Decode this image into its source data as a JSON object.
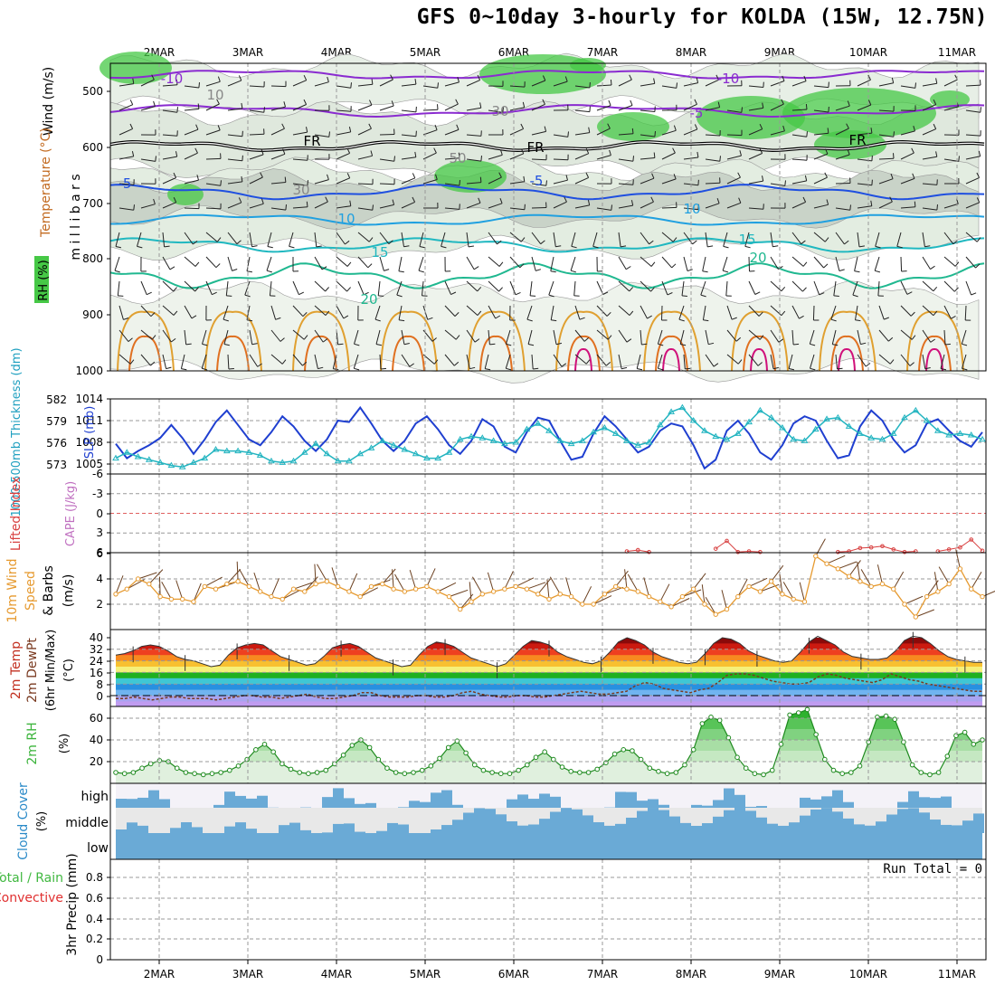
{
  "title": "GFS 0~10day 3-hourly for KOLDA (15W, 12.75N)",
  "date_labels": [
    "2MAR",
    "3MAR",
    "4MAR",
    "5MAR",
    "6MAR",
    "7MAR",
    "8MAR",
    "9MAR",
    "10MAR",
    "11MAR"
  ],
  "colors": {
    "rh_green": "#46c846",
    "slp": "#1f3fd0",
    "thickness": "#22b4c0",
    "lifted_index": "#d84040",
    "cape": "#c070c0",
    "wind_speed": "#e69a30",
    "barb": "#6b4020",
    "rh2m": "#3cb43c",
    "cloud": "#6aaad6",
    "cloud_bg": "#e8e8e8"
  },
  "chart_data": [
    {
      "id": "upper-air",
      "type": "heatmap",
      "side_labels": [
        "Wind (m/s)",
        "Temperature (°C)",
        "RH (%)",
        "m i l l i b a r s"
      ],
      "y_ticks": [
        "500",
        "600",
        "700",
        "800",
        "900",
        "1000"
      ],
      "contour_labels": [
        "-10",
        "-10",
        "-5",
        "FR",
        "FR",
        "FR",
        "-5",
        "-5",
        "10",
        "10",
        "15",
        "15",
        "20",
        "20",
        "50",
        "30",
        "30",
        "10"
      ]
    },
    {
      "id": "slp-thickness",
      "type": "line",
      "side_labels": [
        "1000-500mb Thickness (dm)",
        "SLP (mb)"
      ],
      "y_ticks_left": [
        "582",
        "579",
        "576",
        "573"
      ],
      "y_ticks_right": [
        "1014",
        "1011",
        "1008",
        "1005"
      ],
      "series": [
        {
          "name": "SLP (mb)",
          "values": [
            1007.8,
            1005.8,
            1006.8,
            1007.6,
            1008.6,
            1010.4,
            1008.6,
            1006.4,
            1008.4,
            1010.8,
            1012.4,
            1010.4,
            1008.4,
            1007.6,
            1009.4,
            1011.6,
            1010.2,
            1008.2,
            1006.8,
            1008.4,
            1011.0,
            1010.8,
            1012.8,
            1010.6,
            1008.2,
            1006.8,
            1008.2,
            1010.6,
            1011.6,
            1009.8,
            1007.6,
            1006.4,
            1008.2,
            1011.2,
            1010.2,
            1007.4,
            1006.6,
            1009.4,
            1011.4,
            1011.0,
            1008.2,
            1005.6,
            1006.0,
            1009.2,
            1011.6,
            1010.2,
            1008.4,
            1006.6,
            1007.4,
            1009.6,
            1010.6,
            1010.2,
            1007.6,
            1004.4,
            1005.6,
            1009.6,
            1011.0,
            1009.2,
            1006.6,
            1005.6,
            1007.6,
            1010.6,
            1011.6,
            1011.0,
            1008.2,
            1005.8,
            1006.2,
            1010.2,
            1012.4,
            1011.0,
            1008.4,
            1006.6,
            1007.6,
            1010.6,
            1011.2,
            1009.6,
            1008.2,
            1007.4,
            1009.4
          ]
        },
        {
          "name": "1000-500mb Thickness (dm)",
          "values": [
            573.8,
            574.6,
            574.0,
            573.6,
            573.2,
            572.8,
            572.6,
            573.2,
            573.8,
            575.0,
            574.8,
            574.8,
            574.6,
            574.2,
            573.4,
            573.2,
            573.4,
            574.6,
            575.8,
            574.4,
            573.4,
            573.4,
            574.4,
            575.2,
            576.2,
            575.6,
            575.0,
            574.4,
            573.8,
            573.8,
            574.6,
            576.4,
            576.8,
            576.6,
            576.2,
            575.8,
            576.0,
            577.8,
            578.6,
            577.6,
            576.2,
            575.8,
            576.2,
            577.4,
            578.0,
            577.2,
            576.2,
            575.6,
            576.0,
            578.4,
            580.2,
            580.8,
            579.0,
            577.6,
            576.8,
            576.4,
            577.2,
            578.8,
            580.4,
            579.4,
            578.0,
            576.4,
            576.2,
            577.8,
            579.2,
            579.4,
            578.2,
            577.2,
            576.6,
            576.4,
            577.2,
            579.4,
            580.4,
            579.0,
            577.6,
            577.0,
            577.2,
            577.0,
            576.4
          ]
        }
      ]
    },
    {
      "id": "lifted-index-cape",
      "type": "line",
      "side_labels": [
        "Lifted Index",
        "CAPE (J/kg)"
      ],
      "y_ticks": [
        "-6",
        "-3",
        "0",
        "3",
        "6"
      ],
      "series": [
        {
          "name": "Lifted Index",
          "values": [
            null,
            null,
            null,
            null,
            null,
            null,
            null,
            null,
            null,
            null,
            null,
            null,
            null,
            null,
            null,
            null,
            null,
            null,
            null,
            null,
            null,
            null,
            null,
            null,
            null,
            null,
            null,
            null,
            null,
            null,
            null,
            null,
            null,
            null,
            null,
            null,
            null,
            null,
            null,
            null,
            null,
            null,
            null,
            null,
            null,
            null,
            5.8,
            5.6,
            5.9,
            null,
            null,
            null,
            null,
            null,
            5.4,
            4.2,
            5.9,
            5.8,
            5.9,
            null,
            null,
            null,
            null,
            null,
            null,
            5.9,
            5.8,
            5.3,
            5.2,
            5.0,
            5.5,
            5.9,
            5.8,
            null,
            5.8,
            5.5,
            5.2,
            4.0,
            5.7
          ]
        }
      ]
    },
    {
      "id": "wind10m",
      "type": "line",
      "side_labels": [
        "10m Wind",
        "Speed",
        "& Barbs",
        "(m/s)"
      ],
      "y_ticks": [
        "6",
        "4",
        "2"
      ],
      "series": [
        {
          "name": "Speed",
          "values": [
            2.8,
            3.2,
            4.0,
            3.6,
            2.6,
            2.4,
            2.4,
            2.2,
            3.4,
            3.2,
            3.6,
            3.8,
            3.4,
            3.0,
            2.6,
            2.4,
            3.2,
            3.0,
            3.6,
            3.8,
            3.4,
            3.0,
            2.6,
            3.4,
            3.6,
            3.2,
            3.0,
            3.2,
            3.4,
            3.0,
            2.6,
            1.6,
            2.2,
            2.8,
            3.0,
            3.2,
            3.4,
            3.2,
            2.8,
            2.4,
            2.8,
            2.6,
            2.0,
            2.0,
            2.8,
            3.4,
            3.2,
            3.0,
            2.6,
            2.2,
            1.8,
            2.6,
            3.2,
            2.0,
            1.2,
            1.6,
            2.6,
            3.4,
            3.0,
            3.8,
            2.8,
            2.4,
            2.2,
            5.8,
            5.2,
            4.8,
            4.2,
            3.8,
            3.4,
            3.6,
            3.2,
            2.0,
            1.0,
            2.6,
            3.0,
            3.6,
            4.8,
            3.2,
            2.6
          ]
        }
      ]
    },
    {
      "id": "temp2m",
      "type": "area",
      "side_labels": [
        "2m Temp",
        "2m DewPt",
        "(6hr Min/Max)",
        "(°C)"
      ],
      "y_ticks": [
        "40",
        "32",
        "24",
        "16",
        "8",
        "0"
      ],
      "series": [
        {
          "name": "2m Temp",
          "values": [
            28,
            29,
            31,
            34,
            35,
            34,
            31,
            27,
            25,
            24,
            22,
            20,
            21,
            28,
            33,
            35,
            36,
            35,
            31,
            27,
            25,
            23,
            21,
            22,
            27,
            33,
            35,
            36,
            34,
            30,
            26,
            24,
            22,
            20,
            21,
            28,
            34,
            37,
            36,
            34,
            30,
            26,
            24,
            22,
            20,
            22,
            28,
            34,
            38,
            37,
            35,
            30,
            27,
            25,
            23,
            22,
            24,
            30,
            37,
            40,
            38,
            35,
            30,
            27,
            25,
            23,
            22,
            23,
            29,
            36,
            40,
            39,
            36,
            31,
            28,
            26,
            24,
            23,
            24,
            30,
            37,
            41,
            38,
            35,
            30,
            27,
            26,
            25,
            25,
            26,
            31,
            38,
            41,
            40,
            36,
            31,
            27,
            25,
            24,
            23,
            23
          ]
        },
        {
          "name": "2m DewPt",
          "values": [
            -2,
            -2,
            -1,
            -2,
            -3,
            -2,
            -1,
            -1,
            -2,
            -2,
            -2,
            -3,
            -2,
            -1,
            0,
            0,
            -1,
            -1,
            -2,
            -1,
            0,
            1,
            -1,
            -2,
            -2,
            -1,
            0,
            2,
            2,
            0,
            -1,
            -1,
            -1,
            0,
            0,
            -1,
            -1,
            0,
            2,
            3,
            1,
            0,
            -1,
            -1,
            0,
            0,
            -1,
            -1,
            0,
            1,
            2,
            3,
            2,
            1,
            1,
            2,
            3,
            7,
            9,
            8,
            5,
            4,
            3,
            2,
            4,
            5,
            9,
            14,
            15,
            15,
            14,
            12,
            10,
            9,
            8,
            8,
            9,
            13,
            15,
            14,
            12,
            11,
            10,
            9,
            11,
            15,
            13,
            11,
            10,
            8,
            7,
            6,
            5,
            4,
            3,
            3
          ]
        }
      ]
    },
    {
      "id": "rh2m",
      "type": "area",
      "side_labels": [
        "2m RH",
        "(%)"
      ],
      "y_ticks": [
        "60",
        "40",
        "20"
      ],
      "series": [
        {
          "name": "2m RH",
          "values": [
            10,
            9,
            10,
            14,
            18,
            21,
            20,
            14,
            10,
            9,
            8,
            9,
            10,
            12,
            16,
            22,
            31,
            36,
            29,
            18,
            13,
            10,
            9,
            10,
            12,
            18,
            26,
            35,
            40,
            33,
            22,
            14,
            10,
            9,
            10,
            12,
            16,
            23,
            33,
            39,
            28,
            17,
            12,
            10,
            9,
            9,
            12,
            17,
            24,
            29,
            22,
            15,
            11,
            10,
            10,
            13,
            19,
            27,
            31,
            30,
            22,
            14,
            11,
            9,
            10,
            17,
            31,
            55,
            61,
            58,
            42,
            24,
            14,
            9,
            8,
            12,
            36,
            63,
            65,
            68,
            45,
            22,
            12,
            9,
            10,
            16,
            38,
            61,
            62,
            59,
            38,
            17,
            10,
            8,
            10,
            25,
            44,
            47,
            36,
            40
          ]
        }
      ]
    },
    {
      "id": "cloud",
      "type": "heatmap",
      "side_labels": [
        "Cloud Cover",
        "(%)"
      ],
      "y_ticks": [
        "high",
        "middle",
        "low"
      ]
    },
    {
      "id": "precip",
      "type": "bar",
      "side_labels": [
        "Total / Rain",
        "Convective",
        "3hr Precip (mm)"
      ],
      "y_ticks": [
        "0.8",
        "0.6",
        "0.4",
        "0.2",
        "0"
      ],
      "run_total": "Run Total = 0",
      "values": []
    }
  ]
}
